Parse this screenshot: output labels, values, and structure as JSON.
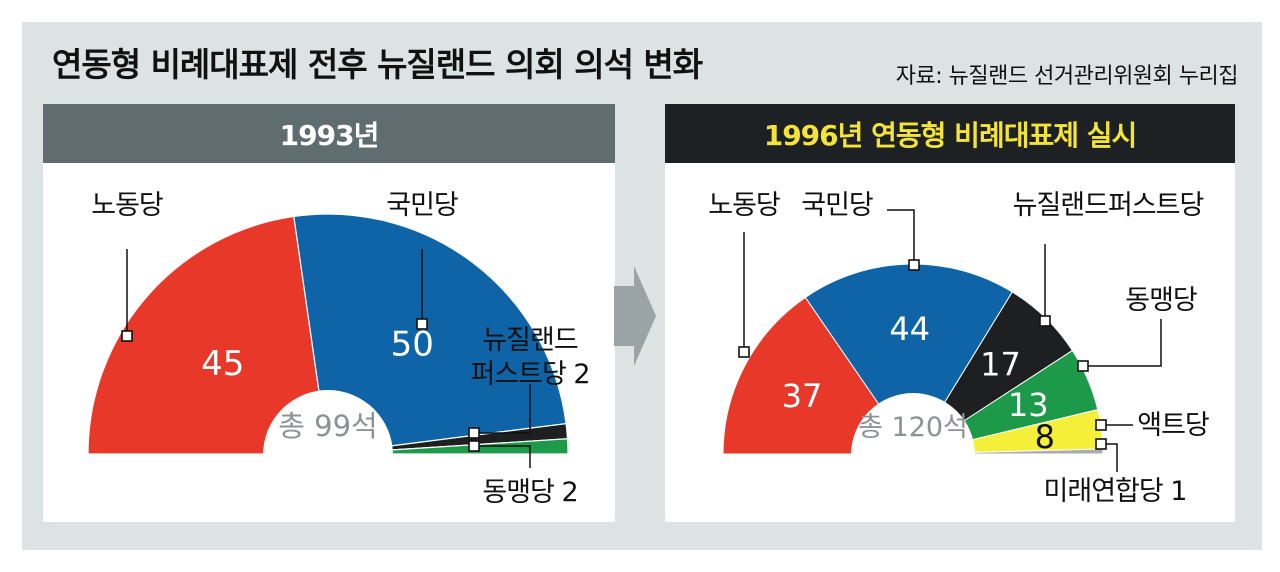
{
  "title": "연동형 비례대표제 전후 뉴질랜드 의회 의석 변화",
  "source": "자료: 뉴질랜드 선거관리위원회 누리집",
  "chart_data": [
    {
      "type": "pie",
      "title": "1993년",
      "total_label": "총 99석",
      "series": [
        {
          "name": "노동당",
          "value": 45,
          "color": "#e8382a",
          "label_lines": [
            "노동당"
          ],
          "show_value": true
        },
        {
          "name": "국민당",
          "value": 50,
          "color": "#0f64a8",
          "label_lines": [
            "국민당"
          ],
          "show_value": true
        },
        {
          "name": "뉴질랜드 퍼스트당",
          "value": 2,
          "color": "#1e1f21",
          "label_lines": [
            "뉴질랜드",
            "퍼스트당 2"
          ],
          "show_value": false
        },
        {
          "name": "동맹당",
          "value": 2,
          "color": "#1c9a4a",
          "label_lines": [
            "동맹당 2"
          ],
          "show_value": false
        }
      ]
    },
    {
      "type": "pie",
      "title": "1996년 연동형 비례대표제 실시",
      "total_label": "총 120석",
      "series": [
        {
          "name": "노동당",
          "value": 37,
          "color": "#e8382a",
          "label_lines": [
            "노동당"
          ],
          "show_value": true
        },
        {
          "name": "국민당",
          "value": 44,
          "color": "#0f64a8",
          "label_lines": [
            "국민당"
          ],
          "show_value": true
        },
        {
          "name": "뉴질랜드퍼스트당",
          "value": 17,
          "color": "#1e1f21",
          "label_lines": [
            "뉴질랜드퍼스트당"
          ],
          "show_value": true
        },
        {
          "name": "동맹당",
          "value": 13,
          "color": "#1c9a4a",
          "label_lines": [
            "동맹당"
          ],
          "show_value": true
        },
        {
          "name": "액트당",
          "value": 8,
          "color": "#f5ef3a",
          "label_lines": [
            "액트당"
          ],
          "show_value": true
        },
        {
          "name": "미래연합당",
          "value": 1,
          "color": "#a9acae",
          "label_lines": [
            "미래연합당 1"
          ],
          "show_value": false
        }
      ]
    }
  ]
}
